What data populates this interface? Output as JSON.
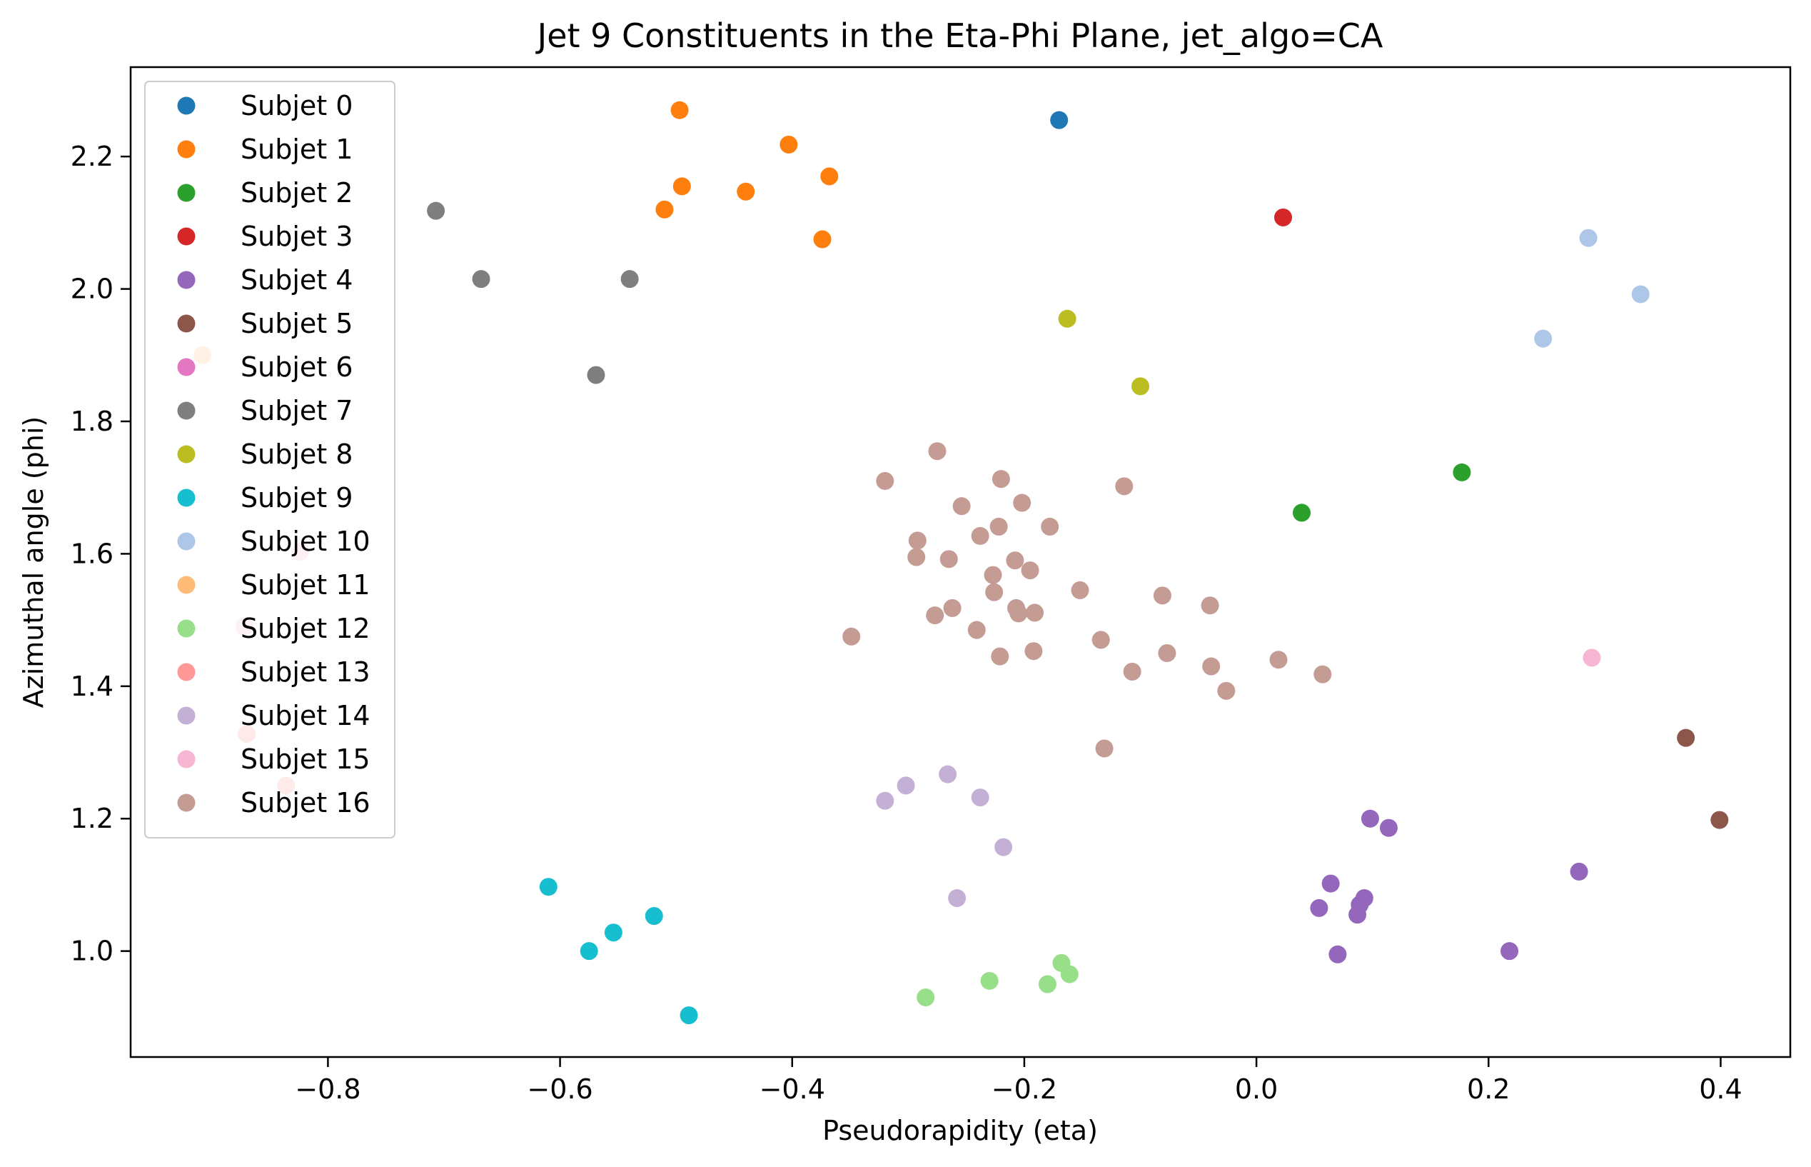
{
  "chart_data": {
    "type": "scatter",
    "title": "Jet 9 Constituents in the Eta-Phi Plane, jet_algo=CA",
    "xlabel": "Pseudorapidity (eta)",
    "ylabel": "Azimuthal angle (phi)",
    "xlim": [
      -0.97,
      0.46
    ],
    "ylim": [
      0.84,
      2.335
    ],
    "xticks": [
      -0.8,
      -0.6,
      -0.4,
      -0.2,
      0.0,
      0.2,
      0.4
    ],
    "xtick_labels": [
      "−0.8",
      "−0.6",
      "−0.4",
      "−0.2",
      "0.0",
      "0.2",
      "0.4"
    ],
    "yticks": [
      1.0,
      1.2,
      1.4,
      1.6,
      1.8,
      2.0,
      2.2
    ],
    "ytick_labels": [
      "1.0",
      "1.2",
      "1.4",
      "1.6",
      "1.8",
      "2.0",
      "2.2"
    ],
    "grid": false,
    "legend_position": "upper-left",
    "series": [
      {
        "name": "Subjet 0",
        "color": "#1f77b4",
        "points": [
          [
            -0.17,
            2.255
          ]
        ]
      },
      {
        "name": "Subjet 1",
        "color": "#ff7f0e",
        "points": [
          [
            -0.497,
            2.27
          ],
          [
            -0.403,
            2.218
          ],
          [
            -0.495,
            2.155
          ],
          [
            -0.368,
            2.17
          ],
          [
            -0.44,
            2.147
          ],
          [
            -0.51,
            2.12
          ],
          [
            -0.374,
            2.075
          ]
        ]
      },
      {
        "name": "Subjet 2",
        "color": "#2ca02c",
        "points": [
          [
            0.177,
            1.723
          ],
          [
            0.039,
            1.662
          ]
        ]
      },
      {
        "name": "Subjet 3",
        "color": "#d62728",
        "points": [
          [
            0.023,
            2.108
          ]
        ]
      },
      {
        "name": "Subjet 4",
        "color": "#9467bd",
        "points": [
          [
            0.098,
            1.2
          ],
          [
            0.114,
            1.186
          ],
          [
            0.278,
            1.12
          ],
          [
            0.064,
            1.102
          ],
          [
            0.093,
            1.08
          ],
          [
            0.089,
            1.07
          ],
          [
            0.054,
            1.065
          ],
          [
            0.087,
            1.055
          ],
          [
            0.07,
            0.995
          ],
          [
            0.218,
            1.0
          ]
        ]
      },
      {
        "name": "Subjet 5",
        "color": "#8c564b",
        "points": [
          [
            0.37,
            1.322
          ],
          [
            0.399,
            1.198
          ]
        ]
      },
      {
        "name": "Subjet 6",
        "color": "#e377c2",
        "points": []
      },
      {
        "name": "Subjet 7",
        "color": "#7f7f7f",
        "points": [
          [
            -0.707,
            2.118
          ],
          [
            -0.668,
            2.015
          ],
          [
            -0.54,
            2.015
          ],
          [
            -0.569,
            1.87
          ]
        ]
      },
      {
        "name": "Subjet 8",
        "color": "#bcbd22",
        "points": [
          [
            -0.163,
            1.955
          ],
          [
            -0.1,
            1.853
          ]
        ]
      },
      {
        "name": "Subjet 9",
        "color": "#17becf",
        "points": [
          [
            -0.61,
            1.097
          ],
          [
            -0.519,
            1.053
          ],
          [
            -0.554,
            1.028
          ],
          [
            -0.575,
            1.0
          ],
          [
            -0.489,
            0.903
          ]
        ]
      },
      {
        "name": "Subjet 10",
        "color": "#aec7e8",
        "points": [
          [
            0.286,
            2.077
          ],
          [
            0.331,
            1.992
          ],
          [
            0.247,
            1.925
          ]
        ]
      },
      {
        "name": "Subjet 11",
        "color": "#ffbb78",
        "points": [
          [
            -0.908,
            1.9
          ]
        ]
      },
      {
        "name": "Subjet 12",
        "color": "#98df8a",
        "points": [
          [
            -0.285,
            0.93
          ],
          [
            -0.23,
            0.955
          ],
          [
            -0.168,
            0.982
          ],
          [
            -0.161,
            0.965
          ],
          [
            -0.18,
            0.95
          ]
        ]
      },
      {
        "name": "Subjet 13",
        "color": "#ff9896",
        "points": [
          [
            -0.87,
            1.328
          ],
          [
            -0.836,
            1.25
          ]
        ]
      },
      {
        "name": "Subjet 14",
        "color": "#c5b0d5",
        "points": [
          [
            -0.266,
            1.267
          ],
          [
            -0.302,
            1.25
          ],
          [
            -0.32,
            1.227
          ],
          [
            -0.238,
            1.232
          ],
          [
            -0.218,
            1.157
          ],
          [
            -0.258,
            1.08
          ]
        ]
      },
      {
        "name": "Subjet 15",
        "color": "#f7b6d2",
        "points": [
          [
            -0.824,
            1.603
          ],
          [
            -0.872,
            1.49
          ],
          [
            0.289,
            1.443
          ]
        ]
      },
      {
        "name": "Subjet 16",
        "color": "#c49c94",
        "points": [
          [
            -0.275,
            1.755
          ],
          [
            -0.32,
            1.71
          ],
          [
            -0.22,
            1.713
          ],
          [
            -0.114,
            1.702
          ],
          [
            -0.254,
            1.672
          ],
          [
            -0.202,
            1.677
          ],
          [
            -0.222,
            1.641
          ],
          [
            -0.178,
            1.641
          ],
          [
            -0.238,
            1.627
          ],
          [
            -0.292,
            1.62
          ],
          [
            -0.293,
            1.595
          ],
          [
            -0.265,
            1.592
          ],
          [
            -0.208,
            1.59
          ],
          [
            -0.195,
            1.575
          ],
          [
            -0.227,
            1.568
          ],
          [
            -0.152,
            1.545
          ],
          [
            -0.226,
            1.542
          ],
          [
            -0.081,
            1.537
          ],
          [
            -0.04,
            1.522
          ],
          [
            -0.262,
            1.518
          ],
          [
            -0.207,
            1.518
          ],
          [
            -0.205,
            1.51
          ],
          [
            -0.191,
            1.511
          ],
          [
            -0.277,
            1.507
          ],
          [
            -0.241,
            1.485
          ],
          [
            -0.349,
            1.475
          ],
          [
            -0.134,
            1.47
          ],
          [
            -0.192,
            1.453
          ],
          [
            -0.077,
            1.45
          ],
          [
            -0.221,
            1.445
          ],
          [
            0.019,
            1.44
          ],
          [
            -0.039,
            1.43
          ],
          [
            -0.107,
            1.422
          ],
          [
            0.057,
            1.418
          ],
          [
            -0.026,
            1.393
          ],
          [
            -0.131,
            1.306
          ]
        ]
      }
    ]
  }
}
